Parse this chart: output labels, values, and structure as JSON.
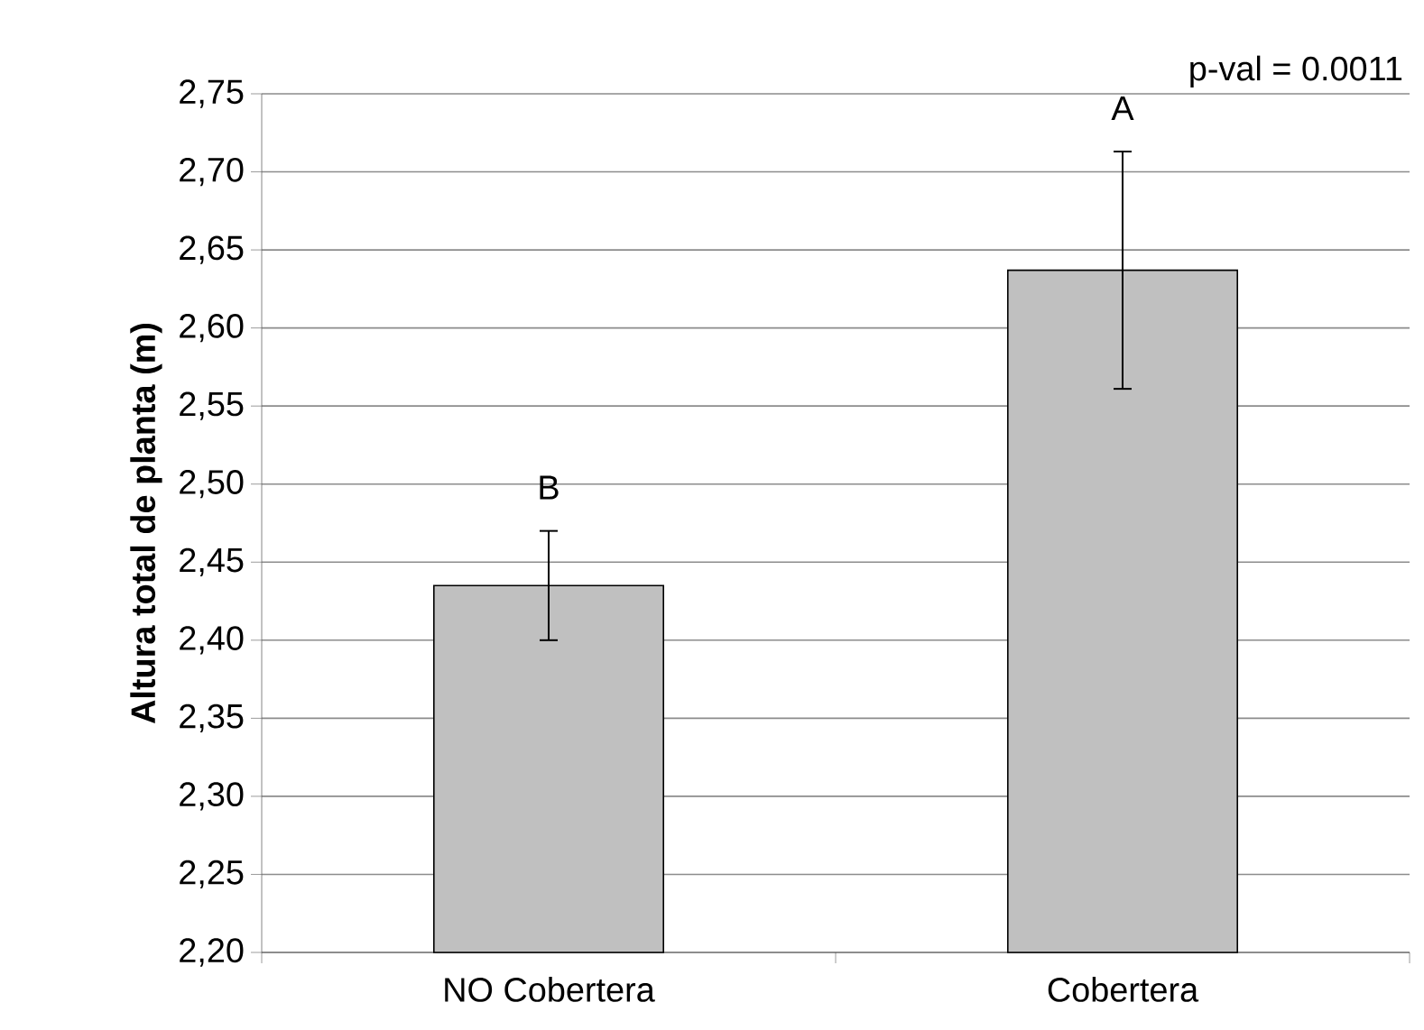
{
  "chart_data": {
    "type": "bar",
    "ylabel": "Altura total de planta (m)",
    "categories": [
      "NO Cobertera",
      "Cobertera"
    ],
    "values": [
      2.435,
      2.637
    ],
    "errors": [
      0.035,
      0.076
    ],
    "color": "#c0c0c0",
    "ylim": [
      2.2,
      2.75
    ],
    "yticks": [
      {
        "value": 2.2,
        "label": "2,20"
      },
      {
        "value": 2.25,
        "label": "2,25"
      },
      {
        "value": 2.3,
        "label": "2,30"
      },
      {
        "value": 2.35,
        "label": "2,35"
      },
      {
        "value": 2.4,
        "label": "2,40"
      },
      {
        "value": 2.45,
        "label": "2,45"
      },
      {
        "value": 2.5,
        "label": "2,50"
      },
      {
        "value": 2.55,
        "label": "2,55"
      },
      {
        "value": 2.6,
        "label": "2,60"
      },
      {
        "value": 2.65,
        "label": "2,65"
      },
      {
        "value": 2.7,
        "label": "2,70"
      },
      {
        "value": 2.75,
        "label": "2,75"
      }
    ],
    "grid": "y",
    "annotations": [
      "p-val = 0.0011",
      "B",
      "A"
    ]
  }
}
